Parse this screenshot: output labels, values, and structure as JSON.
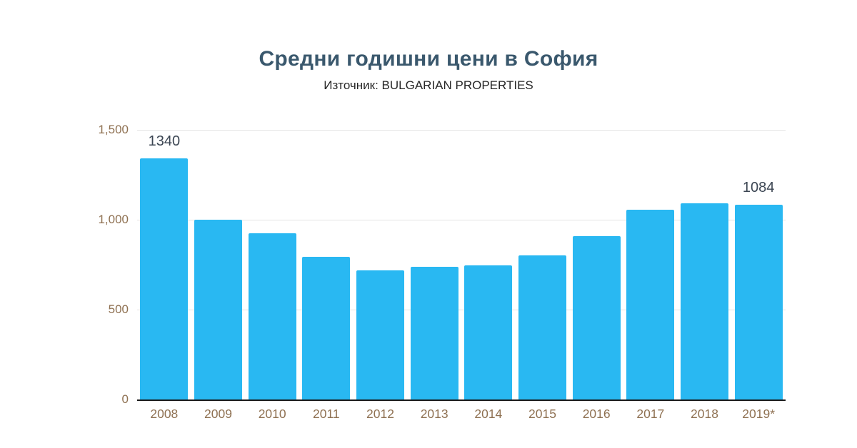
{
  "chart_data": {
    "type": "bar",
    "title": "Средни годишни цени в София",
    "subtitle": "Източник: BULGARIAN PROPERTIES",
    "xlabel": "",
    "ylabel": "",
    "categories": [
      "2008",
      "2009",
      "2010",
      "2011",
      "2012",
      "2013",
      "2014",
      "2015",
      "2016",
      "2017",
      "2018",
      "2019*"
    ],
    "values": [
      1340,
      1000,
      925,
      795,
      720,
      740,
      745,
      800,
      910,
      1055,
      1090,
      1084
    ],
    "point_labels": [
      "1340",
      "",
      "",
      "",
      "",
      "",
      "",
      "",
      "",
      "",
      "",
      "1084"
    ],
    "ylim": [
      0,
      1500
    ],
    "yticks": [
      {
        "value": 0,
        "label": "0"
      },
      {
        "value": 500,
        "label": "500"
      },
      {
        "value": 1000,
        "label": "1,000"
      },
      {
        "value": 1500,
        "label": "1,500"
      }
    ],
    "grid": true,
    "legend": false,
    "colors": {
      "bar": "#29b8f2",
      "title": "#3a586d",
      "subtitle": "#262626",
      "axis_labels": "#8f7152",
      "value_labels": "#3c4653",
      "gridline": "#e3e3e3",
      "baseline": "#1a1a1a",
      "background": "#ffffff"
    }
  }
}
